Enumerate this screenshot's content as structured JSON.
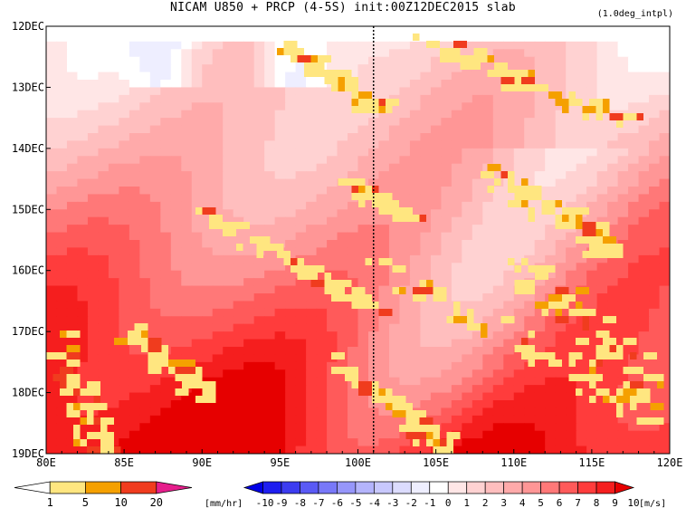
{
  "chart_data": {
    "type": "heatmap",
    "title": "NICAM  U850 + PRCP (4-5S) init:00Z12DEC2015 slab",
    "note": "(1.0deg_intpl)",
    "x_ticks": [
      "80E",
      "85E",
      "90E",
      "95E",
      "100E",
      "105E",
      "110E",
      "115E",
      "120E"
    ],
    "x_tick_values": [
      80,
      85,
      90,
      95,
      100,
      105,
      110,
      115,
      120
    ],
    "xlim": [
      80,
      120
    ],
    "y_ticks": [
      "12DEC",
      "13DEC",
      "14DEC",
      "15DEC",
      "16DEC",
      "17DEC",
      "18DEC",
      "19DEC"
    ],
    "y_tick_values": [
      12,
      13,
      14,
      15,
      16,
      17,
      18,
      19
    ],
    "ylim": [
      12,
      19
    ],
    "reference_line_lon": 101,
    "u850_levels": [
      -10,
      -9,
      -8,
      -7,
      -6,
      -5,
      -4,
      -3,
      -2,
      -1,
      0,
      1,
      2,
      3,
      4,
      5,
      6,
      7,
      8,
      9,
      10
    ],
    "u850_unit": "[m/s]",
    "u850_colors": [
      "#0000e6",
      "#1e1ef0",
      "#3c3cf0",
      "#5a5af5",
      "#7878f8",
      "#9696fa",
      "#b4b4fc",
      "#c8c8fd",
      "#dcdcfe",
      "#eeeeff",
      "#ffffff",
      "#ffe6e6",
      "#ffd2d2",
      "#ffbebe",
      "#ffaaaa",
      "#ff9696",
      "#ff7878",
      "#ff5a5a",
      "#ff3c3c",
      "#f51e1e",
      "#e60000"
    ],
    "prcp_levels": [
      1,
      5,
      10,
      20
    ],
    "prcp_unit": "[mm/hr]",
    "prcp_colors": [
      "#ffffff",
      "#ffe680",
      "#f5a000",
      "#f03c1e",
      "#e61e8c"
    ]
  }
}
